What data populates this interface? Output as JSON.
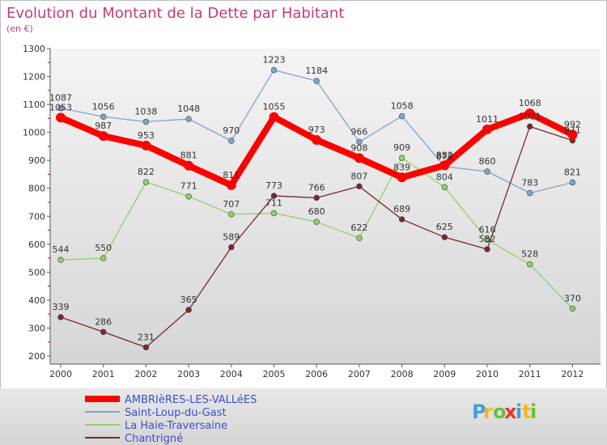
{
  "chart_data": {
    "type": "line",
    "title": "Evolution du Montant de la Dette par Habitant",
    "subtitle": "(en €)",
    "categories": [
      "2000",
      "2001",
      "2002",
      "2003",
      "2004",
      "2005",
      "2006",
      "2007",
      "2008",
      "2009",
      "2010",
      "2011",
      "2012"
    ],
    "ylim": [
      200,
      1300
    ],
    "yticks": [
      200,
      300,
      400,
      500,
      600,
      700,
      800,
      900,
      1000,
      1100,
      1200,
      1300
    ],
    "grid": false,
    "legend_position": "bottom-left",
    "series": [
      {
        "name": "AMBRIèRES-LES-VALLéES",
        "color": "#ff0000",
        "values": [
          1053,
          987,
          953,
          881,
          811,
          1055,
          973,
          908,
          839,
          882,
          1011,
          1068,
          992
        ]
      },
      {
        "name": "Saint-Loup-du-Gast",
        "color": "#7ba6cf",
        "values": [
          1087,
          1056,
          1038,
          1048,
          970,
          1223,
          1184,
          966,
          1058,
          878,
          860,
          783,
          821
        ]
      },
      {
        "name": "La Haie-Traversaine",
        "color": "#8fd16a",
        "values": [
          544,
          550,
          822,
          771,
          707,
          711,
          680,
          622,
          909,
          804,
          616,
          528,
          370
        ]
      },
      {
        "name": "Chantrigné",
        "color": "#7a2828",
        "values": [
          339,
          286,
          231,
          365,
          589,
          773,
          766,
          807,
          689,
          625,
          582,
          1021,
          971
        ]
      }
    ]
  },
  "logo": {
    "text": "Proxiti",
    "colors": [
      "#3fa0e0",
      "#f5b817",
      "#69c13a",
      "#e8352a"
    ]
  }
}
